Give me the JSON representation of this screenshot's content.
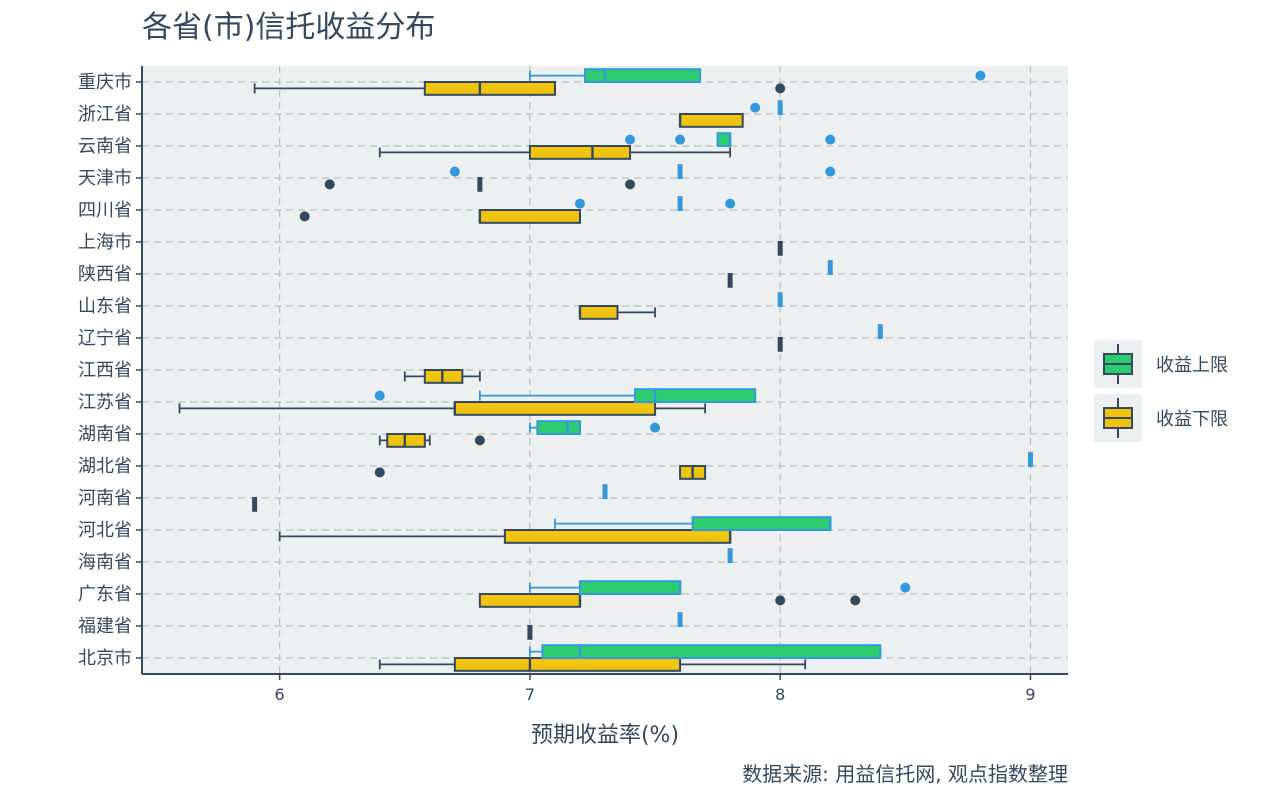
{
  "chart_data": {
    "type": "boxplot",
    "title": "各省(市)信托收益分布",
    "xlabel": "预期收益率(%)",
    "caption": "数据来源: 用益信托网, 观点指数整理",
    "xlim": [
      5.45,
      9.15
    ],
    "xticks": [
      6,
      7,
      8,
      9
    ],
    "grid": true,
    "legend_position": "right",
    "categories": [
      "重庆市",
      "浙江省",
      "云南省",
      "天津市",
      "四川省",
      "上海市",
      "陕西省",
      "山东省",
      "辽宁省",
      "江西省",
      "江苏省",
      "湖南省",
      "湖北省",
      "河南省",
      "河北省",
      "海南省",
      "广东省",
      "福建省",
      "北京市"
    ],
    "series": [
      {
        "name": "收益上限",
        "color": "#2ecc71",
        "whisker_color": "#3498db",
        "boxes": [
          {
            "cat": "重庆市",
            "min": 7.0,
            "q1": 7.22,
            "median": 7.3,
            "q3": 7.68,
            "max": 7.68,
            "outliers": [
              8.8
            ]
          },
          {
            "cat": "浙江省",
            "min": 8.0,
            "q1": 8.0,
            "median": 8.0,
            "q3": 8.0,
            "max": 8.0,
            "outliers": [
              7.9
            ]
          },
          {
            "cat": "云南省",
            "min": 7.75,
            "q1": 7.75,
            "median": 7.8,
            "q3": 7.8,
            "max": 7.8,
            "outliers": [
              7.4,
              7.6,
              8.2
            ]
          },
          {
            "cat": "天津市",
            "min": 7.6,
            "q1": 7.6,
            "median": 7.6,
            "q3": 7.6,
            "max": 7.6,
            "outliers": [
              6.7,
              8.2
            ]
          },
          {
            "cat": "四川省",
            "min": 7.6,
            "q1": 7.6,
            "median": 7.6,
            "q3": 7.6,
            "max": 7.6,
            "outliers": [
              7.2,
              7.8
            ]
          },
          {
            "cat": "陕西省",
            "min": 8.2,
            "q1": 8.2,
            "median": 8.2,
            "q3": 8.2,
            "max": 8.2,
            "outliers": []
          },
          {
            "cat": "山东省",
            "min": 8.0,
            "q1": 8.0,
            "median": 8.0,
            "q3": 8.0,
            "max": 8.0,
            "outliers": []
          },
          {
            "cat": "辽宁省",
            "min": 8.4,
            "q1": 8.4,
            "median": 8.4,
            "q3": 8.4,
            "max": 8.4,
            "outliers": []
          },
          {
            "cat": "江苏省",
            "min": 6.8,
            "q1": 7.42,
            "median": 7.5,
            "q3": 7.9,
            "max": 7.9,
            "outliers": [
              6.4
            ]
          },
          {
            "cat": "湖南省",
            "min": 7.0,
            "q1": 7.03,
            "median": 7.15,
            "q3": 7.2,
            "max": 7.2,
            "outliers": [
              7.5
            ]
          },
          {
            "cat": "湖北省",
            "min": 9.0,
            "q1": 9.0,
            "median": 9.0,
            "q3": 9.0,
            "max": 9.0,
            "outliers": []
          },
          {
            "cat": "河南省",
            "min": 7.3,
            "q1": 7.3,
            "median": 7.3,
            "q3": 7.3,
            "max": 7.3,
            "outliers": []
          },
          {
            "cat": "河北省",
            "min": 7.1,
            "q1": 7.65,
            "median": 8.2,
            "q3": 8.2,
            "max": 8.2,
            "outliers": []
          },
          {
            "cat": "海南省",
            "min": 7.8,
            "q1": 7.8,
            "median": 7.8,
            "q3": 7.8,
            "max": 7.8,
            "outliers": []
          },
          {
            "cat": "广东省",
            "min": 7.0,
            "q1": 7.2,
            "median": 7.6,
            "q3": 7.6,
            "max": 7.6,
            "outliers": [
              8.5
            ]
          },
          {
            "cat": "福建省",
            "min": 7.6,
            "q1": 7.6,
            "median": 7.6,
            "q3": 7.6,
            "max": 7.6,
            "outliers": []
          },
          {
            "cat": "北京市",
            "min": 7.0,
            "q1": 7.05,
            "median": 7.2,
            "q3": 8.4,
            "max": 8.4,
            "outliers": []
          }
        ]
      },
      {
        "name": "收益下限",
        "color": "#f1c40f",
        "whisker_color": "#34495e",
        "boxes": [
          {
            "cat": "重庆市",
            "min": 5.9,
            "q1": 6.58,
            "median": 6.8,
            "q3": 7.1,
            "max": 7.1,
            "outliers": [
              8.0
            ]
          },
          {
            "cat": "浙江省",
            "min": 7.6,
            "q1": 7.6,
            "median": 7.6,
            "q3": 7.85,
            "max": 7.85,
            "outliers": []
          },
          {
            "cat": "云南省",
            "min": 6.4,
            "q1": 7.0,
            "median": 7.25,
            "q3": 7.4,
            "max": 7.8,
            "outliers": []
          },
          {
            "cat": "天津市",
            "min": 6.8,
            "q1": 6.8,
            "median": 6.8,
            "q3": 6.8,
            "max": 6.8,
            "outliers": [
              6.2,
              7.4
            ]
          },
          {
            "cat": "四川省",
            "min": 6.8,
            "q1": 6.8,
            "median": 6.8,
            "q3": 7.2,
            "max": 7.2,
            "outliers": [
              6.1
            ]
          },
          {
            "cat": "上海市",
            "min": 8.0,
            "q1": 8.0,
            "median": 8.0,
            "q3": 8.0,
            "max": 8.0,
            "outliers": []
          },
          {
            "cat": "陕西省",
            "min": 7.8,
            "q1": 7.8,
            "median": 7.8,
            "q3": 7.8,
            "max": 7.8,
            "outliers": []
          },
          {
            "cat": "山东省",
            "min": 7.2,
            "q1": 7.2,
            "median": 7.2,
            "q3": 7.35,
            "max": 7.5,
            "outliers": []
          },
          {
            "cat": "辽宁省",
            "min": 8.0,
            "q1": 8.0,
            "median": 8.0,
            "q3": 8.0,
            "max": 8.0,
            "outliers": []
          },
          {
            "cat": "江西省",
            "min": 6.5,
            "q1": 6.58,
            "median": 6.65,
            "q3": 6.73,
            "max": 6.8,
            "outliers": []
          },
          {
            "cat": "江苏省",
            "min": 5.6,
            "q1": 6.7,
            "median": 6.7,
            "q3": 7.5,
            "max": 7.7,
            "outliers": []
          },
          {
            "cat": "湖南省",
            "min": 6.4,
            "q1": 6.43,
            "median": 6.5,
            "q3": 6.58,
            "max": 6.6,
            "outliers": [
              6.8
            ]
          },
          {
            "cat": "湖北省",
            "min": 7.6,
            "q1": 7.6,
            "median": 7.65,
            "q3": 7.7,
            "max": 7.7,
            "outliers": [
              6.4
            ]
          },
          {
            "cat": "河南省",
            "min": 5.9,
            "q1": 5.9,
            "median": 5.9,
            "q3": 5.9,
            "max": 5.9,
            "outliers": []
          },
          {
            "cat": "河北省",
            "min": 6.0,
            "q1": 6.9,
            "median": 7.8,
            "q3": 7.8,
            "max": 7.8,
            "outliers": []
          },
          {
            "cat": "广东省",
            "min": 6.8,
            "q1": 6.8,
            "median": 7.2,
            "q3": 7.2,
            "max": 7.2,
            "outliers": [
              8.0,
              8.3
            ]
          },
          {
            "cat": "福建省",
            "min": 7.0,
            "q1": 7.0,
            "median": 7.0,
            "q3": 7.0,
            "max": 7.0,
            "outliers": []
          },
          {
            "cat": "北京市",
            "min": 6.4,
            "q1": 6.7,
            "median": 7.0,
            "q3": 7.6,
            "max": 8.1,
            "outliers": []
          }
        ]
      }
    ]
  }
}
